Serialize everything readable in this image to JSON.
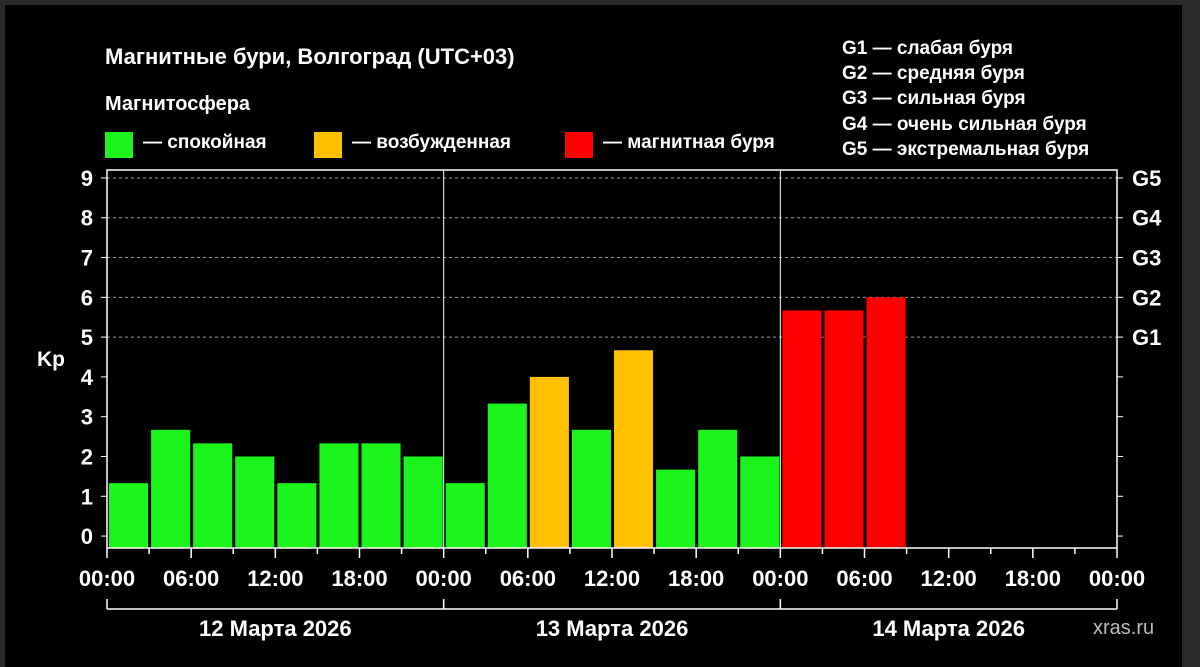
{
  "title": "Магнитные бури, Волгоград (UTC+03)",
  "subtitle": "Магнитосфера",
  "legend": [
    {
      "label": "— спокойная",
      "color": "#1cf51c"
    },
    {
      "label": "— возбужденная",
      "color": "#ffc000"
    },
    {
      "label": "— магнитная буря",
      "color": "#ff0000"
    }
  ],
  "g_scale": [
    {
      "label": "G1 — слабая буря"
    },
    {
      "label": "G2 — средняя буря"
    },
    {
      "label": "G3 — сильная буря"
    },
    {
      "label": "G4 — очень сильная буря"
    },
    {
      "label": "G5 — экстремальная буря"
    }
  ],
  "watermark": "xras.ru",
  "chart_data": {
    "type": "bar",
    "ylabel": "Kp",
    "ylim": [
      -0.3,
      9.2
    ],
    "y_ticks": [
      "0",
      "1",
      "2",
      "3",
      "4",
      "5",
      "6",
      "7",
      "8",
      "9"
    ],
    "right_ticks": [
      {
        "value": 5,
        "label": "G1"
      },
      {
        "value": 6,
        "label": "G2"
      },
      {
        "value": 7,
        "label": "G3"
      },
      {
        "value": 8,
        "label": "G4"
      },
      {
        "value": 9,
        "label": "G5"
      }
    ],
    "x_tick_labels": [
      "00:00",
      "06:00",
      "12:00",
      "18:00",
      "00:00",
      "06:00",
      "12:00",
      "18:00",
      "00:00",
      "06:00",
      "12:00",
      "18:00",
      "00:00"
    ],
    "days": [
      "12 Марта 2026",
      "13 Марта 2026",
      "14 Марта 2026"
    ],
    "bars": [
      {
        "x": "12.03 00:00",
        "kp": 1.33,
        "level": "спокойная"
      },
      {
        "x": "12.03 03:00",
        "kp": 2.67,
        "level": "спокойная"
      },
      {
        "x": "12.03 06:00",
        "kp": 2.33,
        "level": "спокойная"
      },
      {
        "x": "12.03 09:00",
        "kp": 2.0,
        "level": "спокойная"
      },
      {
        "x": "12.03 12:00",
        "kp": 1.33,
        "level": "спокойная"
      },
      {
        "x": "12.03 15:00",
        "kp": 2.33,
        "level": "спокойная"
      },
      {
        "x": "12.03 18:00",
        "kp": 2.33,
        "level": "спокойная"
      },
      {
        "x": "12.03 21:00",
        "kp": 2.0,
        "level": "спокойная"
      },
      {
        "x": "13.03 00:00",
        "kp": 1.33,
        "level": "спокойная"
      },
      {
        "x": "13.03 03:00",
        "kp": 3.33,
        "level": "спокойная"
      },
      {
        "x": "13.03 06:00",
        "kp": 4.0,
        "level": "возбужденная"
      },
      {
        "x": "13.03 09:00",
        "kp": 2.67,
        "level": "спокойная"
      },
      {
        "x": "13.03 12:00",
        "kp": 4.67,
        "level": "возбужденная"
      },
      {
        "x": "13.03 15:00",
        "kp": 1.67,
        "level": "спокойная"
      },
      {
        "x": "13.03 18:00",
        "kp": 2.67,
        "level": "спокойная"
      },
      {
        "x": "13.03 21:00",
        "kp": 2.0,
        "level": "спокойная"
      },
      {
        "x": "14.03 00:00",
        "kp": 5.67,
        "level": "магнитная буря"
      },
      {
        "x": "14.03 03:00",
        "kp": 5.67,
        "level": "магнитная буря"
      },
      {
        "x": "14.03 06:00",
        "kp": 6.0,
        "level": "магнитная буря"
      }
    ],
    "colors": {
      "спокойная": "#1cf51c",
      "возбужденная": "#ffc000",
      "магнитная буря": "#ff0000"
    },
    "gridlines": "dashed at G1–G5 levels"
  }
}
